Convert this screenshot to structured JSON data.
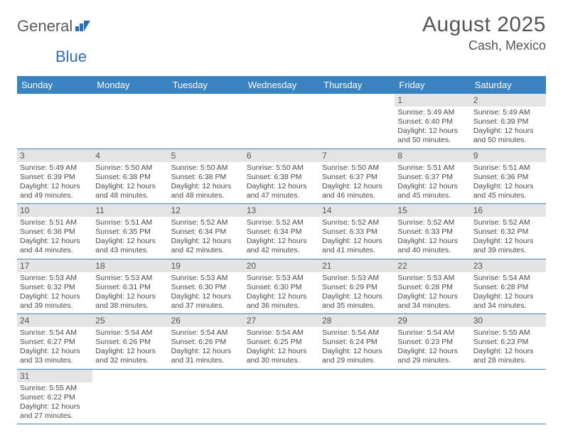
{
  "brand": {
    "general": "General",
    "blue": "Blue"
  },
  "title": "August 2025",
  "location": "Cash, Mexico",
  "colors": {
    "header_bg": "#3b83c0",
    "header_text": "#ffffff",
    "daynum_bg": "#e4e4e4",
    "row_border": "#3b83c0",
    "body_text": "#4a4a4a",
    "title_text": "#555555",
    "logo_gray": "#5a5a5a",
    "logo_blue": "#2f6fb0"
  },
  "weekdays": [
    "Sunday",
    "Monday",
    "Tuesday",
    "Wednesday",
    "Thursday",
    "Friday",
    "Saturday"
  ],
  "weeks": [
    [
      null,
      null,
      null,
      null,
      null,
      {
        "n": "1",
        "rise": "Sunrise: 5:49 AM",
        "set": "Sunset: 6:40 PM",
        "day": "Daylight: 12 hours and 50 minutes."
      },
      {
        "n": "2",
        "rise": "Sunrise: 5:49 AM",
        "set": "Sunset: 6:39 PM",
        "day": "Daylight: 12 hours and 50 minutes."
      }
    ],
    [
      {
        "n": "3",
        "rise": "Sunrise: 5:49 AM",
        "set": "Sunset: 6:39 PM",
        "day": "Daylight: 12 hours and 49 minutes."
      },
      {
        "n": "4",
        "rise": "Sunrise: 5:50 AM",
        "set": "Sunset: 6:38 PM",
        "day": "Daylight: 12 hours and 48 minutes."
      },
      {
        "n": "5",
        "rise": "Sunrise: 5:50 AM",
        "set": "Sunset: 6:38 PM",
        "day": "Daylight: 12 hours and 48 minutes."
      },
      {
        "n": "6",
        "rise": "Sunrise: 5:50 AM",
        "set": "Sunset: 6:38 PM",
        "day": "Daylight: 12 hours and 47 minutes."
      },
      {
        "n": "7",
        "rise": "Sunrise: 5:50 AM",
        "set": "Sunset: 6:37 PM",
        "day": "Daylight: 12 hours and 46 minutes."
      },
      {
        "n": "8",
        "rise": "Sunrise: 5:51 AM",
        "set": "Sunset: 6:37 PM",
        "day": "Daylight: 12 hours and 45 minutes."
      },
      {
        "n": "9",
        "rise": "Sunrise: 5:51 AM",
        "set": "Sunset: 6:36 PM",
        "day": "Daylight: 12 hours and 45 minutes."
      }
    ],
    [
      {
        "n": "10",
        "rise": "Sunrise: 5:51 AM",
        "set": "Sunset: 6:36 PM",
        "day": "Daylight: 12 hours and 44 minutes."
      },
      {
        "n": "11",
        "rise": "Sunrise: 5:51 AM",
        "set": "Sunset: 6:35 PM",
        "day": "Daylight: 12 hours and 43 minutes."
      },
      {
        "n": "12",
        "rise": "Sunrise: 5:52 AM",
        "set": "Sunset: 6:34 PM",
        "day": "Daylight: 12 hours and 42 minutes."
      },
      {
        "n": "13",
        "rise": "Sunrise: 5:52 AM",
        "set": "Sunset: 6:34 PM",
        "day": "Daylight: 12 hours and 42 minutes."
      },
      {
        "n": "14",
        "rise": "Sunrise: 5:52 AM",
        "set": "Sunset: 6:33 PM",
        "day": "Daylight: 12 hours and 41 minutes."
      },
      {
        "n": "15",
        "rise": "Sunrise: 5:52 AM",
        "set": "Sunset: 6:33 PM",
        "day": "Daylight: 12 hours and 40 minutes."
      },
      {
        "n": "16",
        "rise": "Sunrise: 5:52 AM",
        "set": "Sunset: 6:32 PM",
        "day": "Daylight: 12 hours and 39 minutes."
      }
    ],
    [
      {
        "n": "17",
        "rise": "Sunrise: 5:53 AM",
        "set": "Sunset: 6:32 PM",
        "day": "Daylight: 12 hours and 39 minutes."
      },
      {
        "n": "18",
        "rise": "Sunrise: 5:53 AM",
        "set": "Sunset: 6:31 PM",
        "day": "Daylight: 12 hours and 38 minutes."
      },
      {
        "n": "19",
        "rise": "Sunrise: 5:53 AM",
        "set": "Sunset: 6:30 PM",
        "day": "Daylight: 12 hours and 37 minutes."
      },
      {
        "n": "20",
        "rise": "Sunrise: 5:53 AM",
        "set": "Sunset: 6:30 PM",
        "day": "Daylight: 12 hours and 36 minutes."
      },
      {
        "n": "21",
        "rise": "Sunrise: 5:53 AM",
        "set": "Sunset: 6:29 PM",
        "day": "Daylight: 12 hours and 35 minutes."
      },
      {
        "n": "22",
        "rise": "Sunrise: 5:53 AM",
        "set": "Sunset: 6:28 PM",
        "day": "Daylight: 12 hours and 34 minutes."
      },
      {
        "n": "23",
        "rise": "Sunrise: 5:54 AM",
        "set": "Sunset: 6:28 PM",
        "day": "Daylight: 12 hours and 34 minutes."
      }
    ],
    [
      {
        "n": "24",
        "rise": "Sunrise: 5:54 AM",
        "set": "Sunset: 6:27 PM",
        "day": "Daylight: 12 hours and 33 minutes."
      },
      {
        "n": "25",
        "rise": "Sunrise: 5:54 AM",
        "set": "Sunset: 6:26 PM",
        "day": "Daylight: 12 hours and 32 minutes."
      },
      {
        "n": "26",
        "rise": "Sunrise: 5:54 AM",
        "set": "Sunset: 6:26 PM",
        "day": "Daylight: 12 hours and 31 minutes."
      },
      {
        "n": "27",
        "rise": "Sunrise: 5:54 AM",
        "set": "Sunset: 6:25 PM",
        "day": "Daylight: 12 hours and 30 minutes."
      },
      {
        "n": "28",
        "rise": "Sunrise: 5:54 AM",
        "set": "Sunset: 6:24 PM",
        "day": "Daylight: 12 hours and 29 minutes."
      },
      {
        "n": "29",
        "rise": "Sunrise: 5:54 AM",
        "set": "Sunset: 6:23 PM",
        "day": "Daylight: 12 hours and 29 minutes."
      },
      {
        "n": "30",
        "rise": "Sunrise: 5:55 AM",
        "set": "Sunset: 6:23 PM",
        "day": "Daylight: 12 hours and 28 minutes."
      }
    ],
    [
      {
        "n": "31",
        "rise": "Sunrise: 5:55 AM",
        "set": "Sunset: 6:22 PM",
        "day": "Daylight: 12 hours and 27 minutes."
      },
      null,
      null,
      null,
      null,
      null,
      null
    ]
  ]
}
